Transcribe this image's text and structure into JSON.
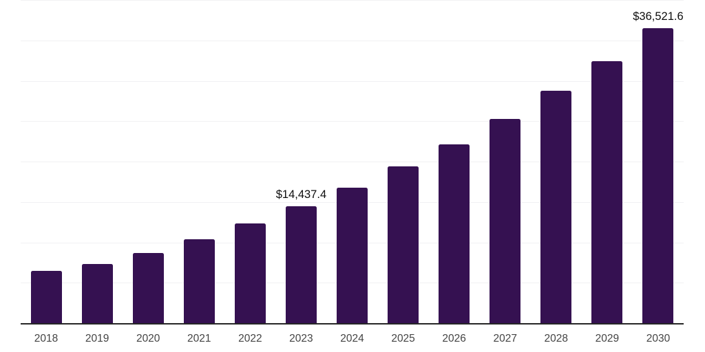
{
  "chart_data": {
    "type": "bar",
    "title": "",
    "xlabel": "",
    "ylabel": "",
    "categories": [
      "2018",
      "2019",
      "2020",
      "2021",
      "2022",
      "2023",
      "2024",
      "2025",
      "2026",
      "2027",
      "2028",
      "2029",
      "2030"
    ],
    "values": [
      6490,
      7340,
      8680,
      10390,
      12380,
      14437.4,
      16790,
      19410,
      22140,
      25250,
      28750,
      32440,
      36521.6
    ],
    "data_labels": [
      "",
      "",
      "",
      "",
      "",
      "$14,437.4",
      "",
      "",
      "",
      "",
      "",
      "",
      "$36,521.6"
    ],
    "ylim": [
      0,
      40000
    ],
    "gridline_step": 5000,
    "grid": true,
    "legend": false,
    "colors": {
      "bar": "#351151",
      "axis_line": "#262626",
      "gridline": "#f1f1f3",
      "tick_label": "#444444",
      "data_label": "#0d0d0d",
      "background": "#ffffff"
    }
  }
}
